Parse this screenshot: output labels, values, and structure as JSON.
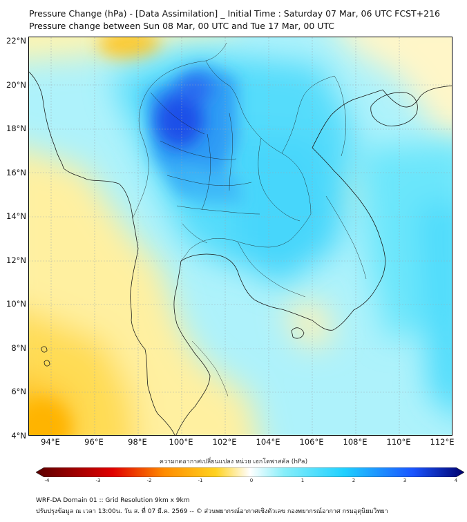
{
  "title_line1": "Pressure Change (hPa) - [Data Assimilation] _ Initial Time : Saturday 07 Mar, 06 UTC FCST+216",
  "title_line2": "Pressure change between Sun 08 Mar, 00 UTC and Tue 17 Mar, 00 UTC",
  "lat_ticks": [
    "22°N",
    "20°N",
    "18°N",
    "16°N",
    "14°N",
    "12°N",
    "10°N",
    "8°N",
    "6°N",
    "4°N"
  ],
  "lon_ticks": [
    "94°E",
    "96°E",
    "98°E",
    "100°E",
    "102°E",
    "104°E",
    "106°E",
    "108°E",
    "110°E",
    "112°E"
  ],
  "colorbar": {
    "caption": "ความกดอากาศเปลี่ยนแปลง หน่วย เฮกโตพาสคัล (hPa)",
    "ticks": [
      "-4",
      "-3",
      "-2",
      "-1",
      "0",
      "1",
      "2",
      "3",
      "4"
    ],
    "min": -4,
    "max": 4,
    "colors": {
      "neg_extreme": "#5a0000",
      "neg_strong": "#e00000",
      "neg_mid": "#ff8c00",
      "neg_light": "#ffd21f",
      "zero": "#ffffff",
      "pos_light": "#86eefa",
      "pos_mid": "#1fd0ff",
      "pos_strong": "#1a55ff",
      "pos_extreme": "#00006e"
    }
  },
  "footer_line1": "WRF-DA Domain 01 :: Grid Resolution 9km x 9km",
  "footer_line2": "ปรับปรุงข้อมูล ณ เวลา 13:00น. วัน ส. ที่ 07 มี.ค. 2569 -- © ส่วนพยากรณ์อากาศเชิงตัวเลข กองพยากรณ์อากาศ กรมอุตุนิยมวิทยา"
}
